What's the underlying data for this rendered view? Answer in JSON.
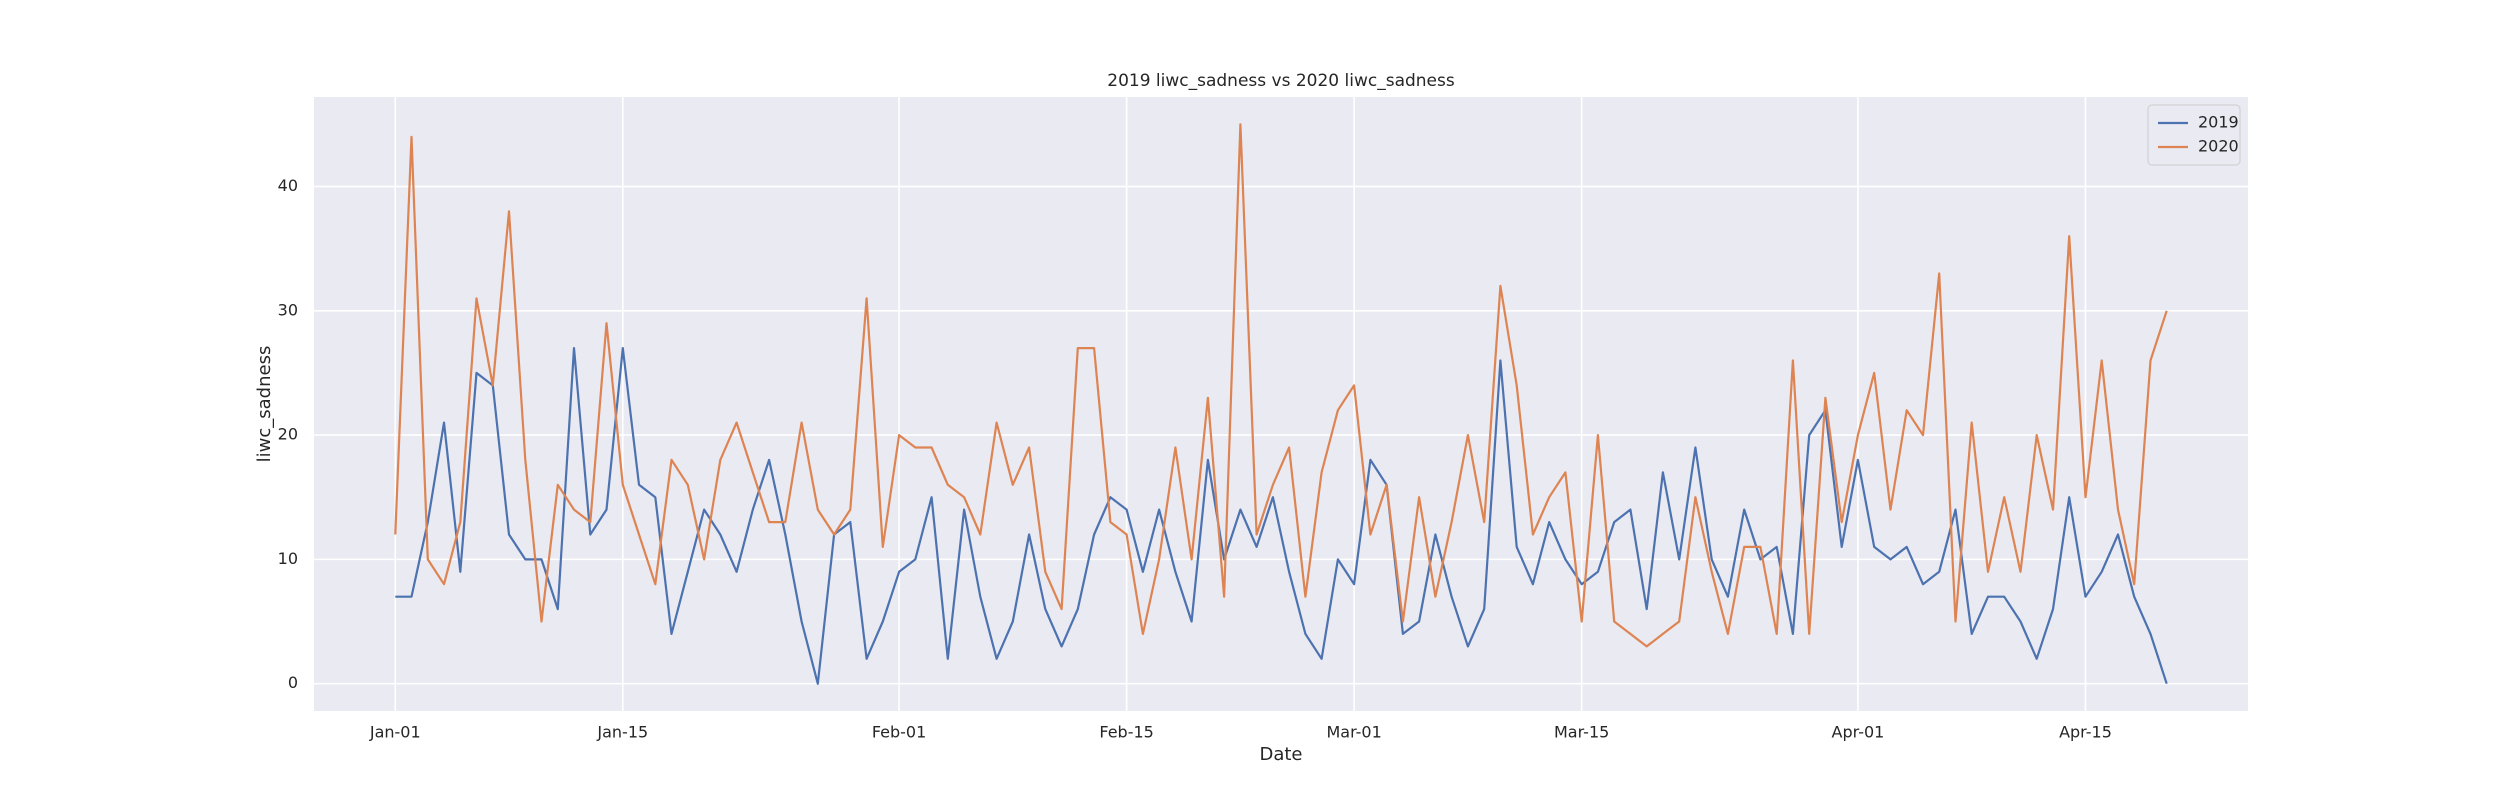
{
  "chart_data": {
    "type": "line",
    "title": "2019 liwc_sadness vs 2020 liwc_sadness",
    "xlabel": "Date",
    "ylabel": "liwc_sadness",
    "x": [
      "01-01",
      "01-02",
      "01-03",
      "01-04",
      "01-05",
      "01-06",
      "01-07",
      "01-08",
      "01-09",
      "01-10",
      "01-11",
      "01-12",
      "01-13",
      "01-14",
      "01-15",
      "01-16",
      "01-17",
      "01-18",
      "01-19",
      "01-20",
      "01-21",
      "01-22",
      "01-23",
      "01-24",
      "01-25",
      "01-26",
      "01-27",
      "01-28",
      "01-29",
      "01-30",
      "01-31",
      "02-01",
      "02-02",
      "02-03",
      "02-04",
      "02-05",
      "02-06",
      "02-07",
      "02-08",
      "02-09",
      "02-10",
      "02-11",
      "02-12",
      "02-13",
      "02-14",
      "02-15",
      "02-16",
      "02-17",
      "02-18",
      "02-19",
      "02-20",
      "02-21",
      "02-22",
      "02-23",
      "02-24",
      "02-25",
      "02-26",
      "02-27",
      "02-28",
      "03-01",
      "03-02",
      "03-03",
      "03-04",
      "03-05",
      "03-06",
      "03-07",
      "03-08",
      "03-09",
      "03-10",
      "03-11",
      "03-12",
      "03-13",
      "03-14",
      "03-15",
      "03-16",
      "03-17",
      "03-18",
      "03-19",
      "03-20",
      "03-21",
      "03-22",
      "03-23",
      "03-24",
      "03-25",
      "03-26",
      "03-27",
      "03-28",
      "03-29",
      "03-30",
      "03-31",
      "04-01",
      "04-02",
      "04-03",
      "04-04",
      "04-05",
      "04-06",
      "04-07",
      "04-08",
      "04-09",
      "04-10",
      "04-11",
      "04-12",
      "04-13",
      "04-14",
      "04-15",
      "04-16",
      "04-17",
      "04-18",
      "04-19",
      "04-20"
    ],
    "series": [
      {
        "name": "2019",
        "color": "#4c72b0",
        "values": [
          7,
          7,
          13,
          21,
          9,
          25,
          24,
          12,
          10,
          10,
          6,
          27,
          12,
          14,
          27,
          16,
          15,
          4,
          9,
          14,
          12,
          9,
          14,
          18,
          12,
          5,
          0,
          12,
          13,
          2,
          5,
          9,
          10,
          15,
          2,
          14,
          7,
          2,
          5,
          12,
          6,
          3,
          6,
          12,
          15,
          14,
          9,
          14,
          9,
          5,
          18,
          10,
          14,
          11,
          15,
          9,
          4,
          2,
          10,
          8,
          18,
          16,
          4,
          5,
          12,
          7,
          3,
          6,
          26,
          11,
          8,
          13,
          10,
          8,
          9,
          13,
          14,
          6,
          17,
          10,
          19,
          10,
          7,
          14,
          10,
          11,
          4,
          20,
          22,
          11,
          18,
          11,
          10,
          11,
          8,
          9,
          14,
          4,
          7,
          7,
          5,
          2,
          6,
          15,
          7,
          9,
          12,
          7,
          4,
          0
        ]
      },
      {
        "name": "2020",
        "color": "#dd8452",
        "values": [
          12,
          44,
          10,
          8,
          13,
          31,
          24,
          38,
          18,
          5,
          16,
          14,
          13,
          29,
          16,
          12,
          8,
          18,
          16,
          10,
          18,
          21,
          17,
          13,
          13,
          21,
          14,
          12,
          14,
          31,
          11,
          20,
          19,
          19,
          16,
          15,
          12,
          21,
          16,
          19,
          9,
          6,
          27,
          27,
          13,
          12,
          4,
          10,
          19,
          10,
          23,
          7,
          45,
          12,
          16,
          19,
          7,
          17,
          22,
          24,
          12,
          16,
          5,
          15,
          7,
          13,
          20,
          13,
          32,
          24,
          12,
          15,
          17,
          5,
          20,
          5,
          4,
          3,
          4,
          5,
          15,
          9,
          4,
          11,
          11,
          4,
          26,
          4,
          23,
          13,
          20,
          25,
          14,
          22,
          20,
          33,
          5,
          21,
          9,
          15,
          9,
          20,
          14,
          36,
          15,
          26,
          14,
          8,
          26,
          30
        ]
      }
    ],
    "xlim": [
      "12-27",
      "04-25"
    ],
    "xticks": [
      {
        "value": "01-01",
        "label": "Jan-01"
      },
      {
        "value": "01-15",
        "label": "Jan-15"
      },
      {
        "value": "02-01",
        "label": "Feb-01"
      },
      {
        "value": "02-15",
        "label": "Feb-15"
      },
      {
        "value": "03-01",
        "label": "Mar-01"
      },
      {
        "value": "03-15",
        "label": "Mar-15"
      },
      {
        "value": "04-01",
        "label": "Apr-01"
      },
      {
        "value": "04-15",
        "label": "Apr-15"
      }
    ],
    "ylim": [
      -2.2,
      47.2
    ],
    "yticks": [
      0,
      10,
      20,
      30,
      40
    ],
    "grid": true,
    "legend": "upper right"
  }
}
